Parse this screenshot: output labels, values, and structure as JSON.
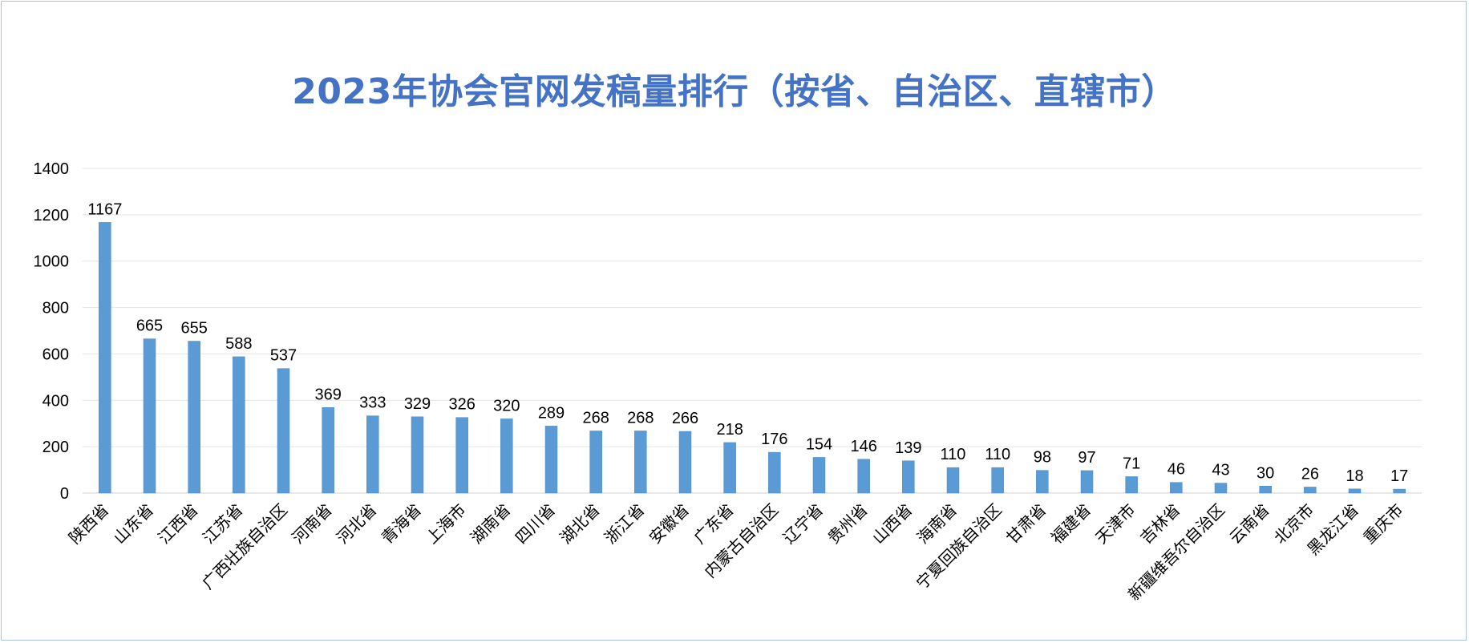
{
  "chart_data": {
    "type": "bar",
    "title": "2023年协会官网发稿量排行（按省、自治区、直辖市）",
    "xlabel": "",
    "ylabel": "",
    "ylim": [
      0,
      1400
    ],
    "yticks": [
      0,
      200,
      400,
      600,
      800,
      1000,
      1200,
      1400
    ],
    "grid": true,
    "legend": "none",
    "bar_color": "#5b9bd5",
    "title_color": "#4472c4",
    "categories": [
      "陕西省",
      "山东省",
      "江西省",
      "江苏省",
      "广西壮族自治区",
      "河南省",
      "河北省",
      "青海省",
      "上海市",
      "湖南省",
      "四川省",
      "湖北省",
      "浙江省",
      "安徽省",
      "广东省",
      "内蒙古自治区",
      "辽宁省",
      "贵州省",
      "山西省",
      "海南省",
      "宁夏回族自治区",
      "甘肃省",
      "福建省",
      "天津市",
      "吉林省",
      "新疆维吾尔自治区",
      "云南省",
      "北京市",
      "黑龙江省",
      "重庆市"
    ],
    "values": [
      1167,
      665,
      655,
      588,
      537,
      369,
      333,
      329,
      326,
      320,
      289,
      268,
      268,
      266,
      218,
      176,
      154,
      146,
      139,
      110,
      110,
      98,
      97,
      71,
      46,
      43,
      30,
      26,
      18,
      17
    ]
  }
}
